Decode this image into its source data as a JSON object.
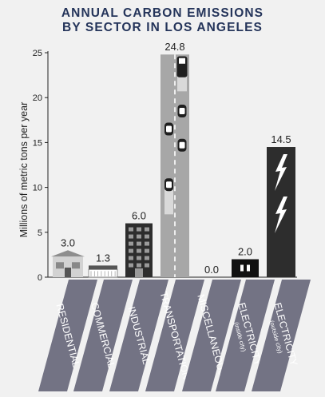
{
  "title_lines": [
    "ANNUAL CARBON EMISSIONS",
    "BY SECTOR IN LOS ANGELES"
  ],
  "chart_data": {
    "type": "bar",
    "title": "ANNUAL CARBON EMISSIONS BY SECTOR IN LOS ANGELES",
    "ylabel": "Millions of metric tons per year",
    "xlabel": "",
    "ylim": [
      0,
      25
    ],
    "yticks": [
      0,
      5,
      10,
      15,
      20,
      25
    ],
    "grid": false,
    "categories": [
      {
        "label": "RESIDENTIAL",
        "sub": ""
      },
      {
        "label": "COMMERCIAL",
        "sub": ""
      },
      {
        "label": "INDUSTRIAL",
        "sub": ""
      },
      {
        "label": "TRANSPORTATION",
        "sub": ""
      },
      {
        "label": "MISCELLANEOUS",
        "sub": ""
      },
      {
        "label": "ELECTRICITY",
        "sub": "(inside city)"
      },
      {
        "label": "ELECTRICITY",
        "sub": "(outside city)"
      }
    ],
    "values": [
      3.0,
      1.3,
      6.0,
      24.8,
      0.0,
      2.0,
      14.5
    ],
    "value_labels": [
      "3.0",
      "1.3",
      "6.0",
      "24.8",
      "0.0",
      "2.0",
      "14.5"
    ]
  },
  "colors": {
    "title": "#24345a",
    "text": "#222222",
    "axis": "#222222",
    "label_band": "#737384",
    "label_text": "#ffffff",
    "building_gray": "#9b9b9b",
    "dark_bar": "#2d2d2d",
    "road": "#a7a7a7"
  },
  "icons": [
    "house-icon",
    "store-icon",
    "factory-icon",
    "road-with-cars-icon",
    "power-plug-icon",
    "lightning-bolt-icon"
  ]
}
